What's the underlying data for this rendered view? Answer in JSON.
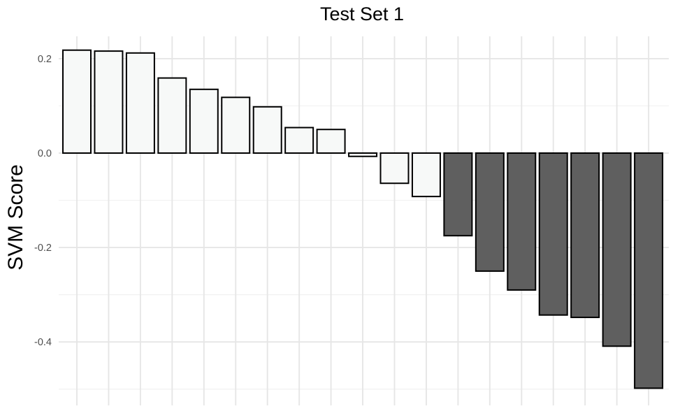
{
  "chart_data": {
    "type": "bar",
    "title": "Test Set 1",
    "xlabel": "",
    "ylabel": "SVM Score",
    "ylim": [
      -0.52,
      0.22
    ],
    "yticks": [
      0.2,
      0.0,
      -0.2,
      -0.4
    ],
    "ytick_labels": [
      "0.2",
      "0.0",
      "-0.2",
      "-0.4"
    ],
    "grid": true,
    "legend": "none",
    "colors": {
      "positive": "#f7f9f8",
      "negative": "#5f5f5f",
      "outline": "#000000",
      "grid_major": "#e6e6e6",
      "grid_minor": "#f1f1f1"
    },
    "values": [
      0.218,
      0.216,
      0.212,
      0.159,
      0.135,
      0.118,
      0.098,
      0.054,
      0.05,
      -0.007,
      -0.064,
      -0.092,
      -0.175,
      -0.25,
      -0.29,
      -0.343,
      -0.348,
      -0.409,
      -0.498
    ],
    "fills": [
      "positive",
      "positive",
      "positive",
      "positive",
      "positive",
      "positive",
      "positive",
      "positive",
      "positive",
      "positive",
      "positive",
      "positive",
      "negative",
      "negative",
      "negative",
      "negative",
      "negative",
      "negative",
      "negative"
    ]
  }
}
